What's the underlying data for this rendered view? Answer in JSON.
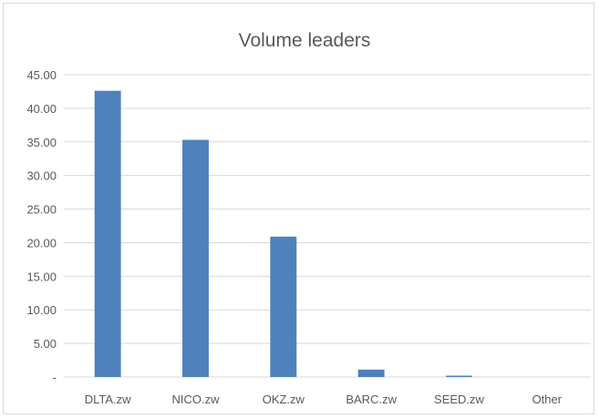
{
  "chart_data": {
    "type": "bar",
    "title": "Volume leaders",
    "xlabel": "",
    "ylabel": "",
    "categories": [
      "DLTA.zw",
      "NICO.zw",
      "OKZ.zw",
      "BARC.zw",
      "SEED.zw",
      "Other"
    ],
    "values": [
      42.6,
      35.3,
      20.9,
      1.1,
      0.2,
      0
    ],
    "ylim": [
      0,
      45
    ],
    "yticks": [
      0,
      5,
      10,
      15,
      20,
      25,
      30,
      35,
      40,
      45
    ],
    "ytick_labels": [
      "-",
      "5.00",
      "10.00",
      "15.00",
      "20.00",
      "25.00",
      "30.00",
      "35.00",
      "40.00",
      "45.00"
    ],
    "grid": true,
    "legend": "none",
    "bar_color": "#4f81bd"
  }
}
